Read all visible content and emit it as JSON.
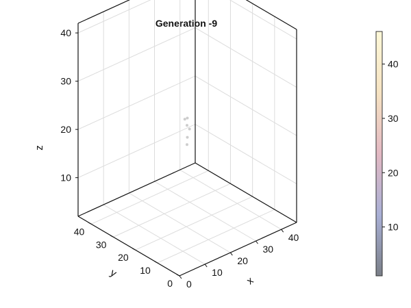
{
  "chart_data": {
    "type": "scatter",
    "title": "Generation -9",
    "xlabel": "x",
    "ylabel": "y",
    "zlabel": "z",
    "xlim": [
      0,
      46
    ],
    "ylim": [
      0,
      46
    ],
    "zlim": [
      2,
      42
    ],
    "xticks": [
      0,
      10,
      20,
      30,
      40
    ],
    "yticks": [
      0,
      10,
      20,
      30,
      40
    ],
    "zticks": [
      10,
      20,
      30,
      40
    ],
    "grid": true,
    "points": [
      {
        "x": 22,
        "y": 23,
        "z": 23
      },
      {
        "x": 23,
        "y": 23,
        "z": 23
      },
      {
        "x": 22,
        "y": 22,
        "z": 22
      },
      {
        "x": 23,
        "y": 22,
        "z": 21
      },
      {
        "x": 23,
        "y": 23,
        "z": 19
      },
      {
        "x": 22,
        "y": 22,
        "z": 18
      }
    ],
    "point_color": "#c8c8c8",
    "colorbar": {
      "ticks": [
        10,
        20,
        30,
        40
      ],
      "range": [
        1,
        46
      ],
      "colors": [
        "#7a7f88",
        "#a9b0d6",
        "#e3b9c3",
        "#f6e3c2",
        "#fdf8d8"
      ]
    }
  }
}
